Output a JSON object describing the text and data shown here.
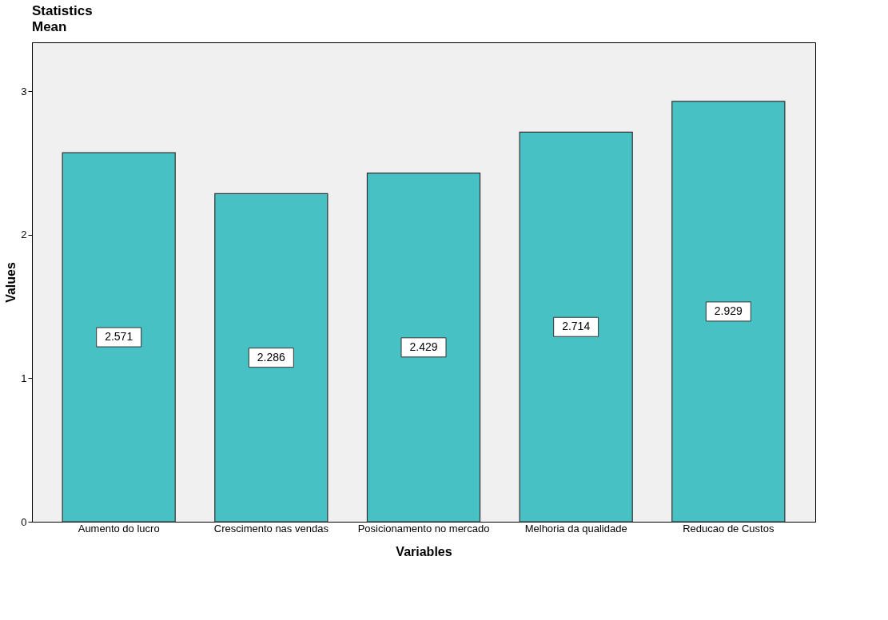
{
  "chart_data": {
    "type": "bar",
    "title": "Statistics",
    "subtitle": "Mean",
    "xlabel": "Variables",
    "ylabel": "Values",
    "categories": [
      "Aumento do lucro",
      "Crescimento nas vendas",
      "Posicionamento no mercado",
      "Melhoria da qualidade",
      "Reducao de Custos"
    ],
    "values": [
      2.571,
      2.286,
      2.429,
      2.714,
      2.929
    ],
    "color": "#48c1c4",
    "ylim": [
      0,
      3.34
    ],
    "yticks": [
      0,
      1,
      2,
      3
    ],
    "grid": false,
    "data_labels": true
  }
}
